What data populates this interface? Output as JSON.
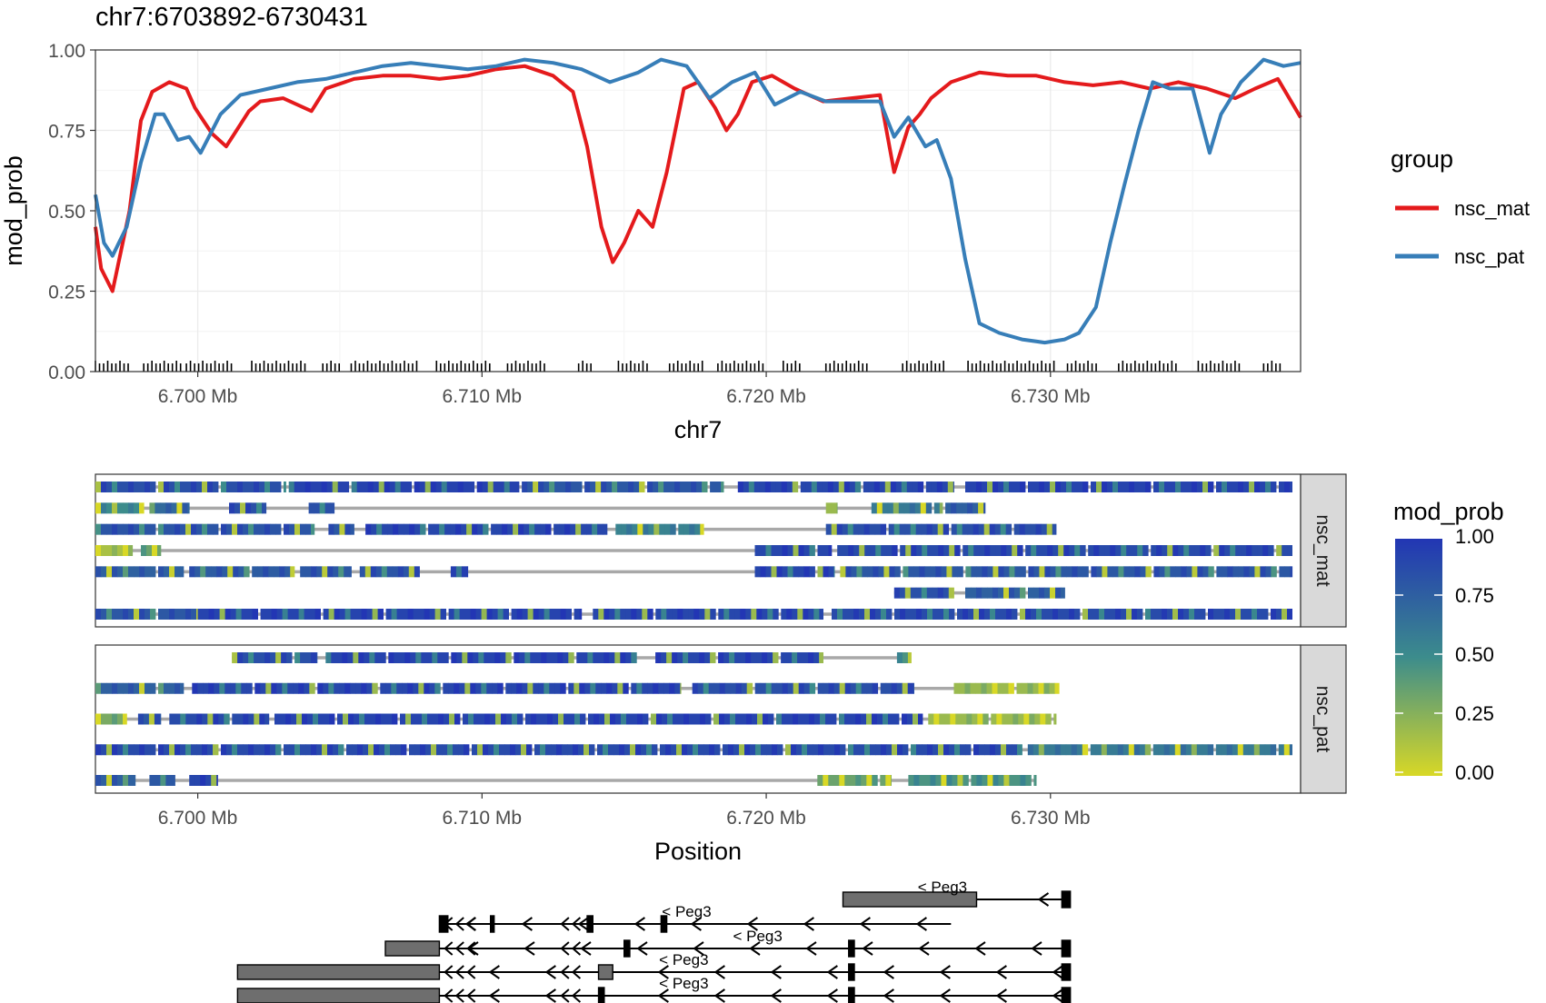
{
  "title": "chr7:6703892-6730431",
  "chart_data": [
    {
      "type": "line",
      "title": "chr7:6703892-6730431",
      "xlabel": "chr7",
      "ylabel": "mod_prob",
      "xlim": [
        6.6964,
        6.7388
      ],
      "ylim": [
        0,
        1
      ],
      "x_units": "Mb",
      "x_ticks": [
        6.7,
        6.71,
        6.72,
        6.73
      ],
      "x_tick_labels": [
        "6.700 Mb",
        "6.710 Mb",
        "6.720 Mb",
        "6.730 Mb"
      ],
      "y_ticks": [
        0,
        0.25,
        0.5,
        0.75,
        1.0
      ],
      "y_tick_labels": [
        "0.00",
        "0.25",
        "0.50",
        "0.75",
        "1.00"
      ],
      "grid": true,
      "legend": {
        "title": "group",
        "position": "right"
      },
      "series": [
        {
          "name": "nsc_mat",
          "color": "#E41A1C",
          "x": [
            6.6964,
            6.6966,
            6.697,
            6.6976,
            6.698,
            6.6984,
            6.699,
            6.6996,
            6.6999,
            6.7002,
            6.7005,
            6.701,
            6.7018,
            6.7022,
            6.703,
            6.704,
            6.7045,
            6.7055,
            6.7065,
            6.7075,
            6.7085,
            6.7095,
            6.7105,
            6.7115,
            6.7125,
            6.7132,
            6.7137,
            6.7142,
            6.7146,
            6.715,
            6.7155,
            6.716,
            6.7165,
            6.7171,
            6.7176,
            6.7182,
            6.7186,
            6.719,
            6.7195,
            6.7202,
            6.721,
            6.722,
            6.723,
            6.724,
            6.7245,
            6.725,
            6.7254,
            6.7258,
            6.7265,
            6.7275,
            6.7285,
            6.7295,
            6.7305,
            6.7315,
            6.7325,
            6.7335,
            6.7345,
            6.7355,
            6.7365,
            6.7372,
            6.738,
            6.7388
          ],
          "values": [
            0.45,
            0.32,
            0.25,
            0.5,
            0.78,
            0.87,
            0.9,
            0.88,
            0.82,
            0.78,
            0.74,
            0.7,
            0.81,
            0.84,
            0.85,
            0.81,
            0.88,
            0.91,
            0.92,
            0.92,
            0.91,
            0.92,
            0.94,
            0.95,
            0.92,
            0.87,
            0.7,
            0.45,
            0.34,
            0.4,
            0.5,
            0.45,
            0.62,
            0.88,
            0.9,
            0.82,
            0.75,
            0.8,
            0.9,
            0.92,
            0.88,
            0.84,
            0.85,
            0.86,
            0.62,
            0.76,
            0.8,
            0.85,
            0.9,
            0.93,
            0.92,
            0.92,
            0.9,
            0.89,
            0.9,
            0.88,
            0.9,
            0.88,
            0.85,
            0.88,
            0.91,
            0.79
          ]
        },
        {
          "name": "nsc_pat",
          "color": "#377EB8",
          "x": [
            6.6964,
            6.6967,
            6.697,
            6.6975,
            6.698,
            6.6985,
            6.6988,
            6.6993,
            6.6997,
            6.7001,
            6.7008,
            6.7015,
            6.7025,
            6.7035,
            6.7045,
            6.7055,
            6.7065,
            6.7075,
            6.7085,
            6.7095,
            6.7105,
            6.7115,
            6.7125,
            6.7135,
            6.7145,
            6.7155,
            6.7163,
            6.7172,
            6.718,
            6.7188,
            6.7196,
            6.7203,
            6.7212,
            6.7221,
            6.723,
            6.724,
            6.7245,
            6.725,
            6.7256,
            6.726,
            6.7265,
            6.727,
            6.7275,
            6.7282,
            6.729,
            6.7298,
            6.7305,
            6.731,
            6.7316,
            6.7321,
            6.7326,
            6.7331,
            6.7336,
            6.7342,
            6.735,
            6.7356,
            6.736,
            6.7367,
            6.7375,
            6.7382,
            6.7388
          ],
          "values": [
            0.55,
            0.4,
            0.36,
            0.45,
            0.65,
            0.8,
            0.8,
            0.72,
            0.73,
            0.68,
            0.8,
            0.86,
            0.88,
            0.9,
            0.91,
            0.93,
            0.95,
            0.96,
            0.95,
            0.94,
            0.95,
            0.97,
            0.96,
            0.94,
            0.9,
            0.93,
            0.97,
            0.95,
            0.85,
            0.9,
            0.93,
            0.83,
            0.87,
            0.84,
            0.84,
            0.84,
            0.73,
            0.79,
            0.7,
            0.72,
            0.6,
            0.35,
            0.15,
            0.12,
            0.1,
            0.09,
            0.1,
            0.12,
            0.2,
            0.4,
            0.58,
            0.75,
            0.9,
            0.88,
            0.88,
            0.68,
            0.8,
            0.9,
            0.97,
            0.95,
            0.96
          ]
        }
      ],
      "rug": {
        "segments": [
          [
            6.6964,
            6.6976
          ],
          [
            6.6981,
            6.6994
          ],
          [
            6.6996,
            6.7012
          ],
          [
            6.7019,
            6.7039
          ],
          [
            6.7044,
            6.7051
          ],
          [
            6.7054,
            6.7078
          ],
          [
            6.7084,
            6.7104
          ],
          [
            6.7109,
            6.7123
          ],
          [
            6.7134,
            6.7139
          ],
          [
            6.7148,
            6.7159
          ],
          [
            6.7166,
            6.7178
          ],
          [
            6.7183,
            6.7199
          ],
          [
            6.7206,
            6.7212
          ],
          [
            6.7221,
            6.7236
          ],
          [
            6.7248,
            6.7263
          ],
          [
            6.7271,
            6.7302
          ],
          [
            6.7306,
            6.7317
          ],
          [
            6.7324,
            6.7345
          ],
          [
            6.7352,
            6.7367
          ],
          [
            6.7375,
            6.7381
          ]
        ]
      }
    },
    {
      "type": "heatmap",
      "xlabel": "Position",
      "x_tick_labels": [
        "6.700 Mb",
        "6.710 Mb",
        "6.720 Mb",
        "6.730 Mb"
      ],
      "legend": {
        "title": "mod_prob",
        "position": "right",
        "min": 0.0,
        "max": 1.0,
        "ticks": [
          "0.00",
          "0.25",
          "0.50",
          "0.75",
          "1.00"
        ],
        "low_color": "#D8D826",
        "mid_color": "#3C8C8C",
        "high_color": "#2236B4"
      },
      "facets": [
        {
          "label": "nsc_mat",
          "reads": [
            [
              [
                6.6964,
                6.7031,
                0.85
              ],
              [
                6.7032,
                6.7113,
                0.93
              ],
              [
                6.7114,
                6.7185,
                0.8
              ],
              [
                6.719,
                6.7266,
                0.9
              ],
              [
                6.727,
                6.7385,
                0.92
              ]
            ],
            [
              [
                6.6964,
                6.6981,
                0.5
              ],
              [
                6.6983,
                6.6997,
                0.7
              ],
              [
                6.7011,
                6.7024,
                0.85
              ],
              [
                6.7039,
                6.7048,
                0.85
              ],
              [
                6.7221,
                6.7225,
                0.2
              ],
              [
                6.7237,
                6.7262,
                0.6
              ],
              [
                6.7263,
                6.7277,
                0.75
              ]
            ],
            [
              [
                6.6964,
                6.7041,
                0.82
              ],
              [
                6.7046,
                6.7055,
                0.8
              ],
              [
                6.7059,
                6.7144,
                0.9
              ],
              [
                6.7147,
                6.7178,
                0.55
              ],
              [
                6.7221,
                6.7302,
                0.85
              ]
            ],
            [
              [
                6.6964,
                6.6977,
                0.15
              ],
              [
                6.698,
                6.6987,
                0.35
              ],
              [
                6.7196,
                6.7223,
                0.9
              ],
              [
                6.7225,
                6.7385,
                0.88
              ]
            ],
            [
              [
                6.6964,
                6.6995,
                0.75
              ],
              [
                6.6997,
                6.7034,
                0.78
              ],
              [
                6.7036,
                6.7054,
                0.8
              ],
              [
                6.7057,
                6.7078,
                0.82
              ],
              [
                6.7089,
                6.7095,
                0.95
              ],
              [
                6.7196,
                6.7224,
                0.9
              ],
              [
                6.7226,
                6.7385,
                0.8
              ]
            ],
            [
              [
                6.7245,
                6.7266,
                0.85
              ],
              [
                6.727,
                6.7305,
                0.75
              ]
            ],
            [
              [
                6.6964,
                6.7,
                0.8
              ],
              [
                6.7,
                6.7135,
                0.92
              ],
              [
                6.7139,
                6.722,
                0.9
              ],
              [
                6.7223,
                6.7385,
                0.88
              ]
            ]
          ]
        },
        {
          "label": "nsc_pat",
          "reads": [
            [
              [
                6.7012,
                6.7042,
                0.85
              ],
              [
                6.7045,
                6.7155,
                0.92
              ],
              [
                6.7161,
                6.722,
                0.9
              ],
              [
                6.7246,
                6.7251,
                0.45
              ]
            ],
            [
              [
                6.6964,
                6.6995,
                0.75
              ],
              [
                6.6998,
                6.717,
                0.9
              ],
              [
                6.7174,
                6.7252,
                0.85
              ],
              [
                6.7266,
                6.7303,
                0.2
              ]
            ],
            [
              [
                6.6964,
                6.6975,
                0.3
              ],
              [
                6.6979,
                6.6987,
                0.8
              ],
              [
                6.699,
                6.7025,
                0.88
              ],
              [
                6.7027,
                6.7255,
                0.92
              ],
              [
                6.7257,
                6.7302,
                0.2
              ]
            ],
            [
              [
                6.6964,
                6.729,
                0.88
              ],
              [
                6.7292,
                6.7385,
                0.6
              ]
            ],
            [
              [
                6.6964,
                6.6978,
                0.75
              ],
              [
                6.6983,
                6.6992,
                0.8
              ],
              [
                6.6997,
                6.7007,
                0.9
              ],
              [
                6.7218,
                6.7244,
                0.35
              ],
              [
                6.725,
                6.7295,
                0.45
              ]
            ]
          ]
        }
      ]
    }
  ],
  "genes": [
    {
      "label": "< Peg3",
      "label_x": 6.7262,
      "start": 6.7227,
      "end": 6.7307,
      "exons": [
        [
          6.7227,
          6.7274
        ],
        [
          6.7304,
          6.7307
        ]
      ]
    },
    {
      "label": "< Peg3",
      "label_x": 6.7172,
      "start": 6.7085,
      "end": 6.7265,
      "exons": [
        [
          6.7085,
          6.7088
        ],
        [
          6.7103,
          6.7104
        ],
        [
          6.7137,
          6.7139
        ],
        [
          6.7163,
          6.7165
        ]
      ]
    },
    {
      "label": "< Peg3",
      "label_x": 6.7197,
      "start": 6.7066,
      "end": 6.7307,
      "exons": [
        [
          6.7066,
          6.7085
        ],
        [
          6.715,
          6.7152
        ],
        [
          6.7229,
          6.7231
        ],
        [
          6.7304,
          6.7307
        ]
      ]
    },
    {
      "label": "< Peg3",
      "label_x": 6.7171,
      "start": 6.7014,
      "end": 6.7307,
      "exons": [
        [
          6.7014,
          6.7085
        ],
        [
          6.7141,
          6.7146
        ],
        [
          6.7229,
          6.7231
        ],
        [
          6.7304,
          6.7307
        ]
      ]
    },
    {
      "label": "< Peg3",
      "label_x": 6.7171,
      "start": 6.7014,
      "end": 6.7307,
      "exons": [
        [
          6.7014,
          6.7085
        ],
        [
          6.7141,
          6.7143
        ],
        [
          6.7229,
          6.7231
        ],
        [
          6.7304,
          6.7307
        ]
      ]
    }
  ]
}
